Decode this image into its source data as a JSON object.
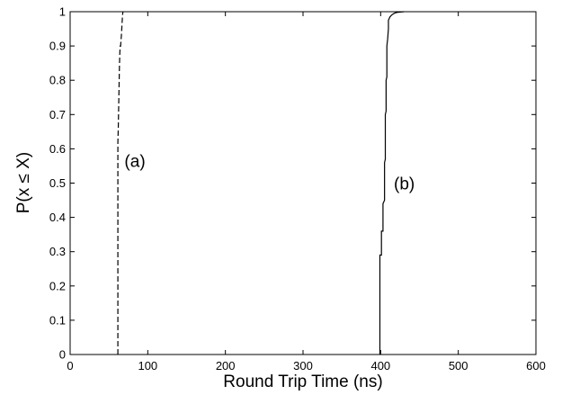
{
  "chart_data": {
    "type": "line",
    "title": "",
    "xlabel": "Round Trip Time (ns)",
    "ylabel": "P(x ≤ X)",
    "xlim": [
      0,
      600
    ],
    "ylim": [
      0,
      1
    ],
    "xticks": [
      0,
      100,
      200,
      300,
      400,
      500,
      600
    ],
    "yticks": [
      0,
      0.1,
      0.2,
      0.3,
      0.4,
      0.5,
      0.6,
      0.7,
      0.8,
      0.9,
      1
    ],
    "xtick_labels": [
      "0",
      "100",
      "200",
      "300",
      "400",
      "500",
      "600"
    ],
    "ytick_labels": [
      "0",
      "0.1",
      "0.2",
      "0.3",
      "0.4",
      "0.5",
      "0.6",
      "0.7",
      "0.8",
      "0.9",
      "1"
    ],
    "grid": false,
    "series": [
      {
        "style": "dashed",
        "color": "#000000",
        "x": [
          61.5,
          61.5,
          62,
          62.5,
          63,
          63.5,
          64,
          64.5,
          65,
          66,
          66.5,
          67,
          67.5,
          68
        ],
        "y": [
          0,
          0.62,
          0.66,
          0.72,
          0.78,
          0.84,
          0.88,
          0.9,
          0.9,
          0.93,
          0.95,
          0.97,
          0.99,
          1.0
        ]
      },
      {
        "style": "solid",
        "color": "#000000",
        "x": [
          399,
          399,
          401,
          401,
          403,
          403,
          405,
          405,
          406,
          406,
          407,
          407,
          408,
          408,
          409,
          410,
          410,
          411,
          412,
          414,
          416,
          418,
          421,
          425,
          430
        ],
        "y": [
          0,
          0.29,
          0.29,
          0.36,
          0.36,
          0.44,
          0.45,
          0.56,
          0.57,
          0.7,
          0.71,
          0.8,
          0.81,
          0.9,
          0.92,
          0.95,
          0.975,
          0.98,
          0.985,
          0.99,
          0.993,
          0.996,
          0.998,
          0.999,
          1.0
        ]
      }
    ],
    "annotations": [
      {
        "text": "(a)",
        "x": 70,
        "y": 0.565
      },
      {
        "text": "(b)",
        "x": 417,
        "y": 0.5
      }
    ]
  }
}
